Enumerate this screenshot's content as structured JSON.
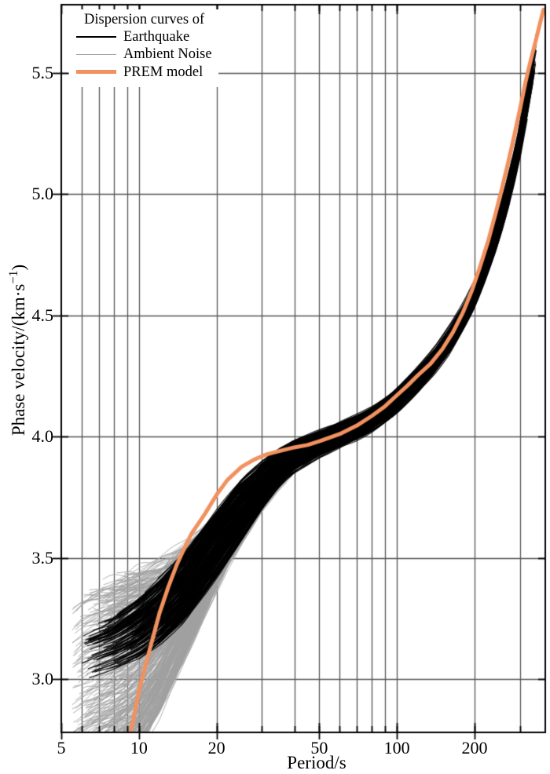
{
  "chart_data": {
    "type": "line",
    "x_scale": "log",
    "xlabel": "Period/s",
    "ylabel": "Phase velocity/(km·s⁻¹)",
    "ylabel_parts": {
      "prefix": "Phase velocity/(km·s",
      "sup": "−1",
      "suffix": ")"
    },
    "xlim": [
      5,
      376
    ],
    "ylim": [
      2.78,
      5.78
    ],
    "x_ticks": [
      {
        "v": 5,
        "label": "5"
      },
      {
        "v": 10,
        "label": "10"
      },
      {
        "v": 20,
        "label": "20"
      },
      {
        "v": 50,
        "label": "50"
      },
      {
        "v": 100,
        "label": "100"
      },
      {
        "v": 200,
        "label": "200"
      }
    ],
    "x_minor_gridlines": [
      6,
      7,
      8,
      9,
      10,
      20,
      30,
      40,
      50,
      60,
      70,
      80,
      90,
      100,
      200,
      300
    ],
    "y_ticks": [
      {
        "v": 3.0,
        "label": "3.0"
      },
      {
        "v": 3.5,
        "label": "3.5"
      },
      {
        "v": 4.0,
        "label": "4.0"
      },
      {
        "v": 4.5,
        "label": "4.5"
      },
      {
        "v": 5.0,
        "label": "5.0"
      },
      {
        "v": 5.5,
        "label": "5.5"
      }
    ],
    "grid_on": true,
    "grid_color": "#545454",
    "legend": {
      "position": "upper-left",
      "title": "Dispersion curves of",
      "entries": [
        {
          "label": "Earthquake",
          "color": "#000000",
          "sample_thickness": 2
        },
        {
          "label": "Ambient Noise",
          "color": "#9f9f9f",
          "sample_thickness": 1.3
        },
        {
          "label": "PREM model",
          "color": "#F1915F",
          "sample_thickness": 5
        }
      ]
    },
    "series": [
      {
        "name": "Ambient Noise",
        "style": "ensemble",
        "color": "#a0a0a0",
        "curve_count": 420,
        "line_width": 1.0,
        "period_s": [
          5.5,
          6,
          7,
          8,
          9,
          10,
          12,
          15,
          18,
          22,
          26,
          30,
          35,
          40,
          44
        ],
        "velocity_lower": [
          2.55,
          2.55,
          2.58,
          2.6,
          2.63,
          2.67,
          2.8,
          3.02,
          3.22,
          3.42,
          3.56,
          3.67,
          3.76,
          3.83,
          3.87
        ],
        "velocity_upper": [
          3.3,
          3.35,
          3.4,
          3.44,
          3.47,
          3.5,
          3.55,
          3.62,
          3.68,
          3.74,
          3.8,
          3.87,
          3.94,
          3.99,
          4.01
        ],
        "period_start_range": [
          5.5,
          9.0
        ],
        "period_end_range": [
          28,
          44
        ]
      },
      {
        "name": "Earthquake",
        "style": "ensemble",
        "color": "#000000",
        "curve_count": 200,
        "line_width": 1.15,
        "period_s": [
          6,
          8,
          10,
          12,
          15,
          20,
          25,
          30,
          35,
          40,
          50,
          60,
          70,
          80,
          90,
          100,
          120,
          140,
          160,
          180,
          200,
          220,
          240,
          260,
          280,
          300,
          320,
          335,
          347
        ],
        "velocity_lower": [
          3.0,
          3.04,
          3.08,
          3.14,
          3.23,
          3.41,
          3.56,
          3.69,
          3.785,
          3.845,
          3.905,
          3.94,
          3.97,
          4.005,
          4.045,
          4.085,
          4.17,
          4.25,
          4.33,
          4.42,
          4.51,
          4.62,
          4.73,
          4.85,
          4.98,
          5.12,
          5.28,
          5.4,
          5.5
        ],
        "velocity_upper": [
          3.2,
          3.26,
          3.34,
          3.42,
          3.53,
          3.71,
          3.84,
          3.91,
          3.96,
          3.995,
          4.035,
          4.07,
          4.1,
          4.135,
          4.175,
          4.215,
          4.3,
          4.38,
          4.47,
          4.56,
          4.66,
          4.78,
          4.9,
          5.03,
          5.17,
          5.32,
          5.5,
          5.62,
          5.72
        ],
        "period_start_range": [
          6,
          13.5
        ],
        "period_end_range": [
          269,
          348
        ]
      },
      {
        "name": "PREM model",
        "style": "line",
        "color": "#F1915F",
        "line_width": 5,
        "period_s": [
          9.3,
          10,
          11,
          12,
          13,
          14,
          15,
          16,
          18,
          20,
          22,
          25,
          28,
          31,
          35,
          40,
          45,
          50,
          60,
          70,
          80,
          90,
          100,
          110,
          120,
          135,
          150,
          165,
          180,
          195,
          210,
          225,
          240,
          255,
          270,
          285,
          300,
          315,
          330,
          345,
          360,
          370
        ],
        "velocity": [
          2.78,
          2.95,
          3.12,
          3.27,
          3.38,
          3.47,
          3.54,
          3.6,
          3.68,
          3.76,
          3.82,
          3.875,
          3.905,
          3.925,
          3.94,
          3.955,
          3.965,
          3.98,
          4.01,
          4.045,
          4.085,
          4.125,
          4.17,
          4.21,
          4.25,
          4.3,
          4.36,
          4.43,
          4.51,
          4.6,
          4.7,
          4.8,
          4.91,
          5.02,
          5.13,
          5.24,
          5.35,
          5.46,
          5.55,
          5.63,
          5.71,
          5.76
        ]
      }
    ]
  }
}
